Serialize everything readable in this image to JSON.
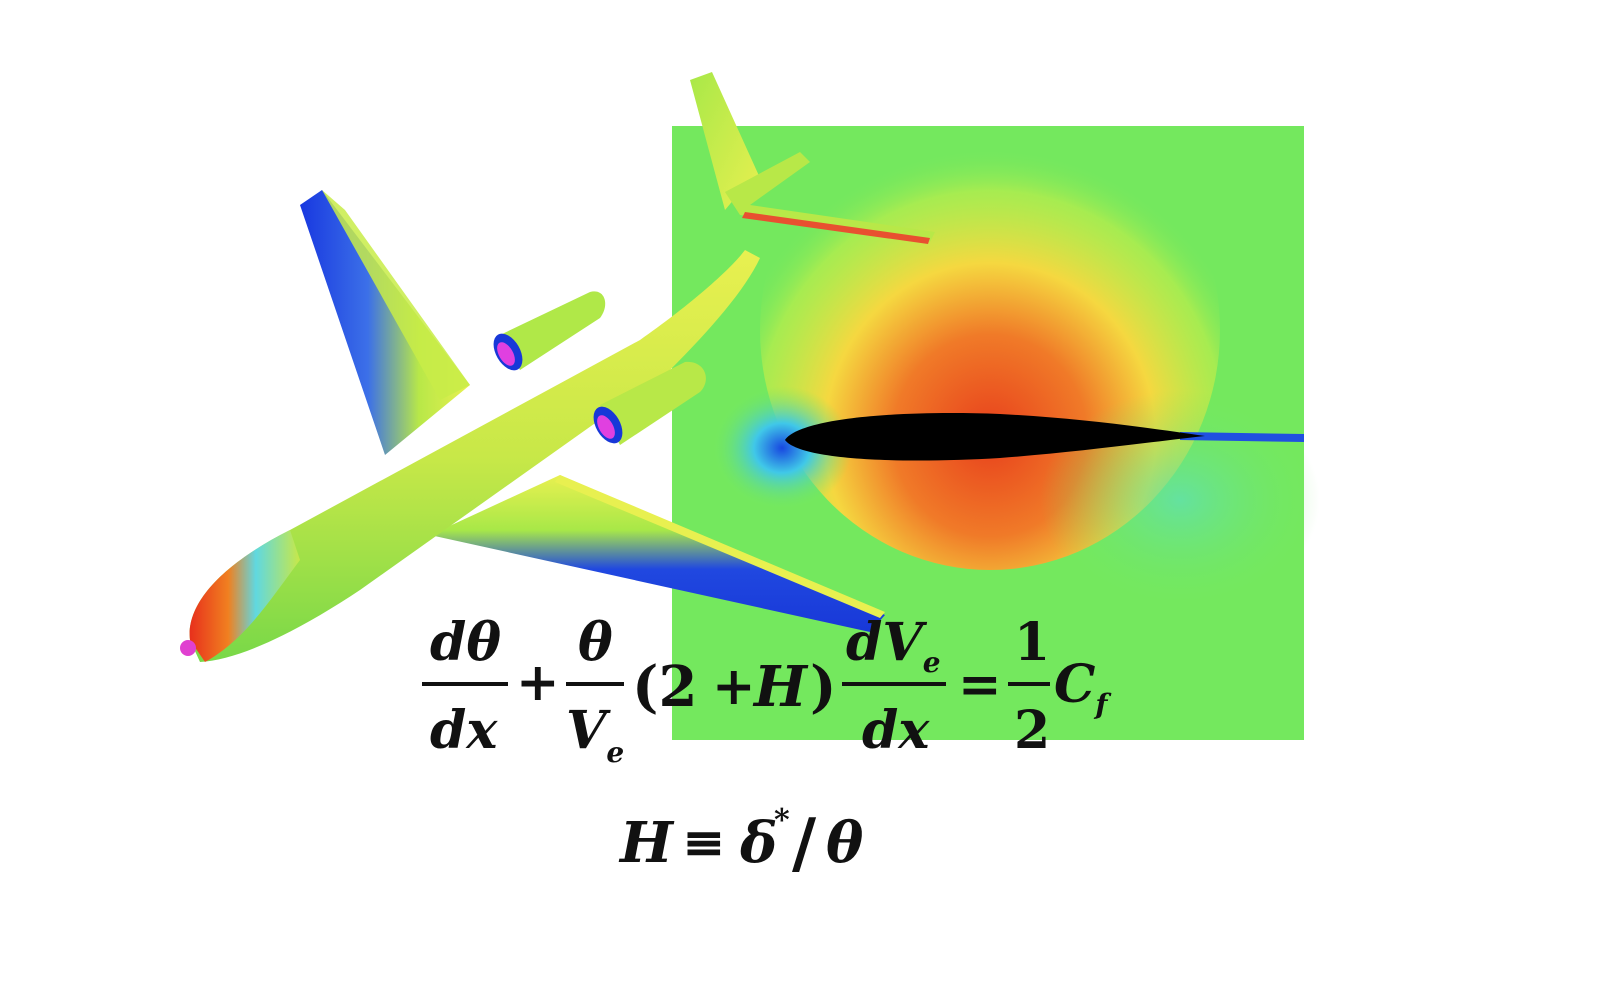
{
  "figure": {
    "elements": [
      "aircraft-surface-pressure",
      "airfoil-flow-field"
    ],
    "colors": {
      "background": "#ffffff",
      "field_base": "#74e85e",
      "high_pressure": "#e8401c",
      "mid_high": "#f5e840",
      "low_pressure": "#1840e0",
      "suction": "#52e6e6",
      "nacelle_inlet": "#e040e0",
      "airfoil": "#000000"
    }
  },
  "equations": {
    "momentum": {
      "t1_num_d": "d",
      "t1_num_sym": "θ",
      "t1_den": "dx",
      "plus1": "+",
      "t2_num": "θ",
      "t2_den_v": "V",
      "t2_den_sub": "e",
      "paren_open": "(2",
      "plus2": "+",
      "H": "H",
      "paren_close": ")",
      "t3_num_d": "d",
      "t3_num_v": "V",
      "t3_num_sub": "e",
      "t3_den": "dx",
      "equals": "=",
      "half_num": "1",
      "half_den": "2",
      "cf": "C",
      "cf_sub": "f"
    },
    "shape_factor": {
      "H": "H",
      "equiv": "≡",
      "delta": "δ",
      "star": "*",
      "slash": "/",
      "theta": "θ"
    }
  }
}
